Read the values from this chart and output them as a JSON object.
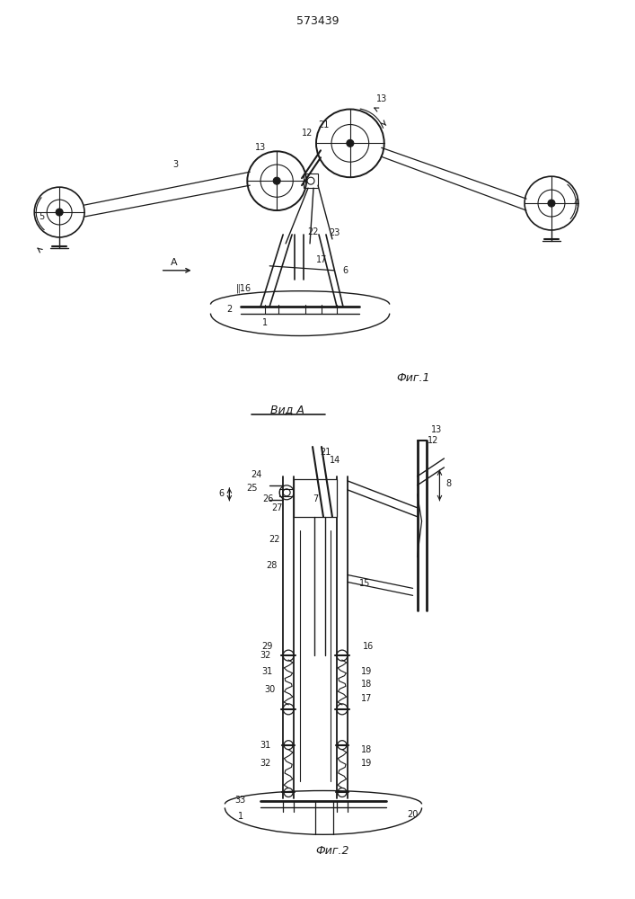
{
  "patent_number": "573439",
  "fig1_caption": "Фиг.1",
  "fig2_caption": "Фиг.2",
  "view_label": "Вид А",
  "background_color": "#ffffff",
  "line_color": "#1a1a1a",
  "fig_width": 7.07,
  "fig_height": 10.0
}
